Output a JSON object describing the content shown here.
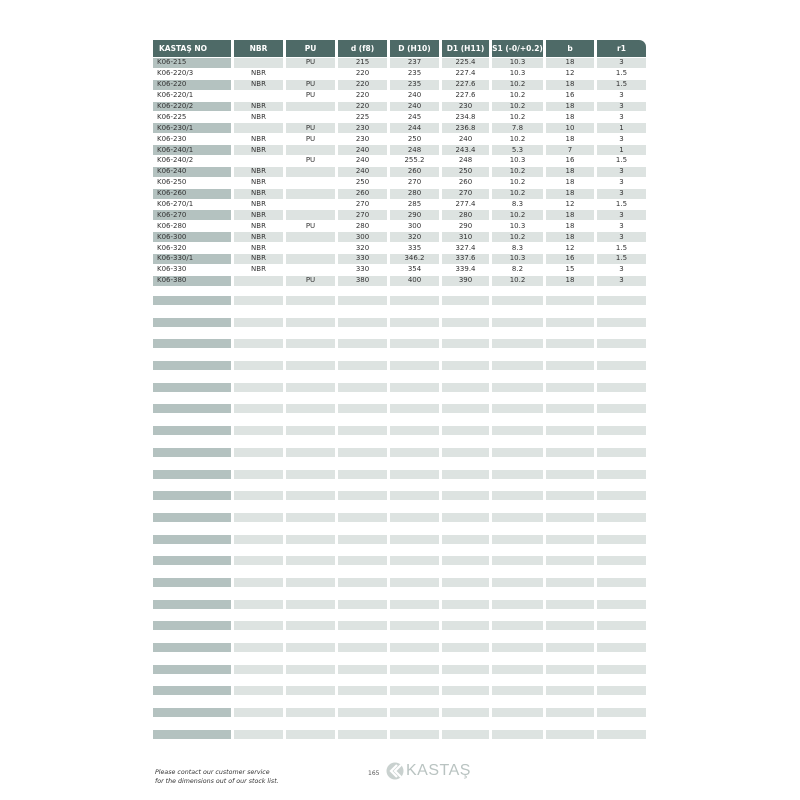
{
  "table": {
    "headers": [
      "KASTAŞ NO",
      "NBR",
      "PU",
      "d (f8)",
      "D (H10)",
      "D1 (H11)",
      "S1 (-0/+0.2)",
      "b",
      "r1"
    ],
    "rows": [
      [
        "K06-215",
        "",
        "PU",
        "215",
        "237",
        "225.4",
        "10.3",
        "18",
        "3"
      ],
      [
        "K06-220/3",
        "NBR",
        "",
        "220",
        "235",
        "227.4",
        "10.3",
        "12",
        "1.5"
      ],
      [
        "K06-220",
        "NBR",
        "PU",
        "220",
        "235",
        "227.6",
        "10.2",
        "18",
        "1.5"
      ],
      [
        "K06-220/1",
        "",
        "PU",
        "220",
        "240",
        "227.6",
        "10.2",
        "16",
        "3"
      ],
      [
        "K06-220/2",
        "NBR",
        "",
        "220",
        "240",
        "230",
        "10.2",
        "18",
        "3"
      ],
      [
        "K06-225",
        "NBR",
        "",
        "225",
        "245",
        "234.8",
        "10.2",
        "18",
        "3"
      ],
      [
        "K06-230/1",
        "",
        "PU",
        "230",
        "244",
        "236.8",
        "7.8",
        "10",
        "1"
      ],
      [
        "K06-230",
        "NBR",
        "PU",
        "230",
        "250",
        "240",
        "10.2",
        "18",
        "3"
      ],
      [
        "K06-240/1",
        "NBR",
        "",
        "240",
        "248",
        "243.4",
        "5.3",
        "7",
        "1"
      ],
      [
        "K06-240/2",
        "",
        "PU",
        "240",
        "255.2",
        "248",
        "10.3",
        "16",
        "1.5"
      ],
      [
        "K06-240",
        "NBR",
        "",
        "240",
        "260",
        "250",
        "10.2",
        "18",
        "3"
      ],
      [
        "K06-250",
        "NBR",
        "",
        "250",
        "270",
        "260",
        "10.2",
        "18",
        "3"
      ],
      [
        "K06-260",
        "NBR",
        "",
        "260",
        "280",
        "270",
        "10.2",
        "18",
        "3"
      ],
      [
        "K06-270/1",
        "NBR",
        "",
        "270",
        "285",
        "277.4",
        "8.3",
        "12",
        "1.5"
      ],
      [
        "K06-270",
        "NBR",
        "",
        "270",
        "290",
        "280",
        "10.2",
        "18",
        "3"
      ],
      [
        "K06-280",
        "NBR",
        "PU",
        "280",
        "300",
        "290",
        "10.3",
        "18",
        "3"
      ],
      [
        "K06-300",
        "NBR",
        "",
        "300",
        "320",
        "310",
        "10.2",
        "18",
        "3"
      ],
      [
        "K06-320",
        "NBR",
        "",
        "320",
        "335",
        "327.4",
        "8.3",
        "12",
        "1.5"
      ],
      [
        "K06-330/1",
        "NBR",
        "",
        "330",
        "346.2",
        "337.6",
        "10.3",
        "16",
        "1.5"
      ],
      [
        "K06-330",
        "NBR",
        "",
        "330",
        "354",
        "339.4",
        "8.2",
        "15",
        "3"
      ],
      [
        "K06-380",
        "",
        "PU",
        "380",
        "400",
        "390",
        "10.2",
        "18",
        "3"
      ]
    ]
  },
  "footer": {
    "note_line1": "Please contact our customer service",
    "note_line2": "for the dimensions out of our stock list.",
    "page_number": "165",
    "logo_text": "KASTAŞ"
  },
  "colors": {
    "header": "#4e6a67",
    "shade_first": "#b4c2c0",
    "shade": "#dde3e1"
  }
}
